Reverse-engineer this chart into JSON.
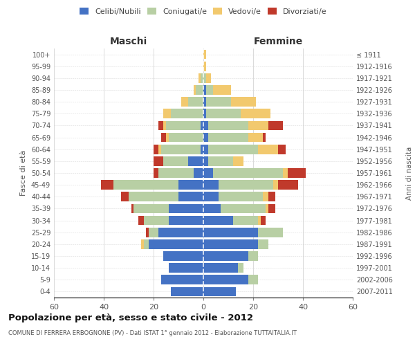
{
  "age_groups": [
    "0-4",
    "5-9",
    "10-14",
    "15-19",
    "20-24",
    "25-29",
    "30-34",
    "35-39",
    "40-44",
    "45-49",
    "50-54",
    "55-59",
    "60-64",
    "65-69",
    "70-74",
    "75-79",
    "80-84",
    "85-89",
    "90-94",
    "95-99",
    "100+"
  ],
  "birth_years": [
    "2007-2011",
    "2002-2006",
    "1997-2001",
    "1992-1996",
    "1987-1991",
    "1982-1986",
    "1977-1981",
    "1972-1976",
    "1967-1971",
    "1962-1966",
    "1957-1961",
    "1952-1956",
    "1947-1951",
    "1942-1946",
    "1937-1941",
    "1932-1936",
    "1927-1931",
    "1922-1926",
    "1917-1921",
    "1912-1916",
    "≤ 1911"
  ],
  "male": {
    "celibi": [
      13,
      17,
      14,
      16,
      22,
      18,
      14,
      14,
      10,
      10,
      4,
      6,
      1,
      0,
      1,
      0,
      0,
      0,
      0,
      0,
      0
    ],
    "coniugati": [
      0,
      0,
      0,
      0,
      2,
      4,
      10,
      14,
      20,
      26,
      14,
      10,
      16,
      14,
      14,
      13,
      6,
      3,
      1,
      0,
      0
    ],
    "vedovi": [
      0,
      0,
      0,
      0,
      1,
      0,
      0,
      0,
      0,
      0,
      0,
      0,
      1,
      1,
      1,
      3,
      3,
      1,
      1,
      0,
      0
    ],
    "divorziati": [
      0,
      0,
      0,
      0,
      0,
      1,
      2,
      1,
      3,
      5,
      2,
      4,
      2,
      2,
      2,
      0,
      0,
      0,
      0,
      0,
      0
    ]
  },
  "female": {
    "nubili": [
      13,
      18,
      14,
      18,
      22,
      22,
      12,
      7,
      6,
      6,
      4,
      2,
      2,
      2,
      2,
      1,
      1,
      1,
      0,
      0,
      0
    ],
    "coniugate": [
      0,
      4,
      2,
      4,
      4,
      10,
      10,
      18,
      18,
      22,
      28,
      10,
      20,
      16,
      16,
      14,
      10,
      3,
      1,
      0,
      0
    ],
    "vedove": [
      0,
      0,
      0,
      0,
      0,
      0,
      1,
      1,
      2,
      2,
      2,
      4,
      8,
      6,
      8,
      12,
      10,
      7,
      2,
      1,
      1
    ],
    "divorziate": [
      0,
      0,
      0,
      0,
      0,
      0,
      2,
      3,
      3,
      8,
      7,
      0,
      3,
      1,
      6,
      0,
      0,
      0,
      0,
      0,
      0
    ]
  },
  "colors": {
    "celibi": "#4472c4",
    "coniugati": "#b8cfa4",
    "vedovi": "#f2c96e",
    "divorziati": "#c0392b"
  },
  "title": "Popolazione per età, sesso e stato civile - 2012",
  "subtitle": "COMUNE DI FERRERA ERBOGNONE (PV) - Dati ISTAT 1° gennaio 2012 - Elaborazione TUTTAITALIA.IT",
  "xlabel_maschi": "Maschi",
  "xlabel_femmine": "Femmine",
  "ylabel": "Fasce di età",
  "ylabel_right": "Anni di nascita",
  "xlim": 60,
  "bg_color": "#ffffff",
  "grid_color": "#cccccc"
}
